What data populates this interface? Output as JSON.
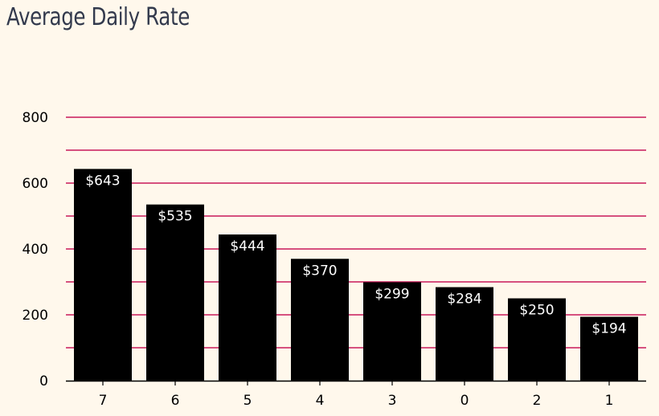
{
  "chart_data": {
    "type": "bar",
    "title": "Average Daily Rate",
    "xlabel": "",
    "ylabel": "",
    "categories": [
      "7",
      "6",
      "5",
      "4",
      "3",
      "0",
      "2",
      "1"
    ],
    "values": [
      643,
      535,
      444,
      370,
      299,
      284,
      250,
      194
    ],
    "value_labels": [
      "$643",
      "$535",
      "$444",
      "$370",
      "$299",
      "$284",
      "$250",
      "$194"
    ],
    "ylim": [
      0,
      800
    ],
    "yticks": [
      0,
      200,
      400,
      600,
      800
    ],
    "yticks_labels": [
      "0",
      "200",
      "400",
      "600",
      "800"
    ],
    "grid_step": 100,
    "grid": true,
    "colors": {
      "bar": "#000000",
      "grid": "#c8185a",
      "background": "#fff8ec",
      "title": "#333a4d",
      "value_label": "#ffffff"
    }
  }
}
